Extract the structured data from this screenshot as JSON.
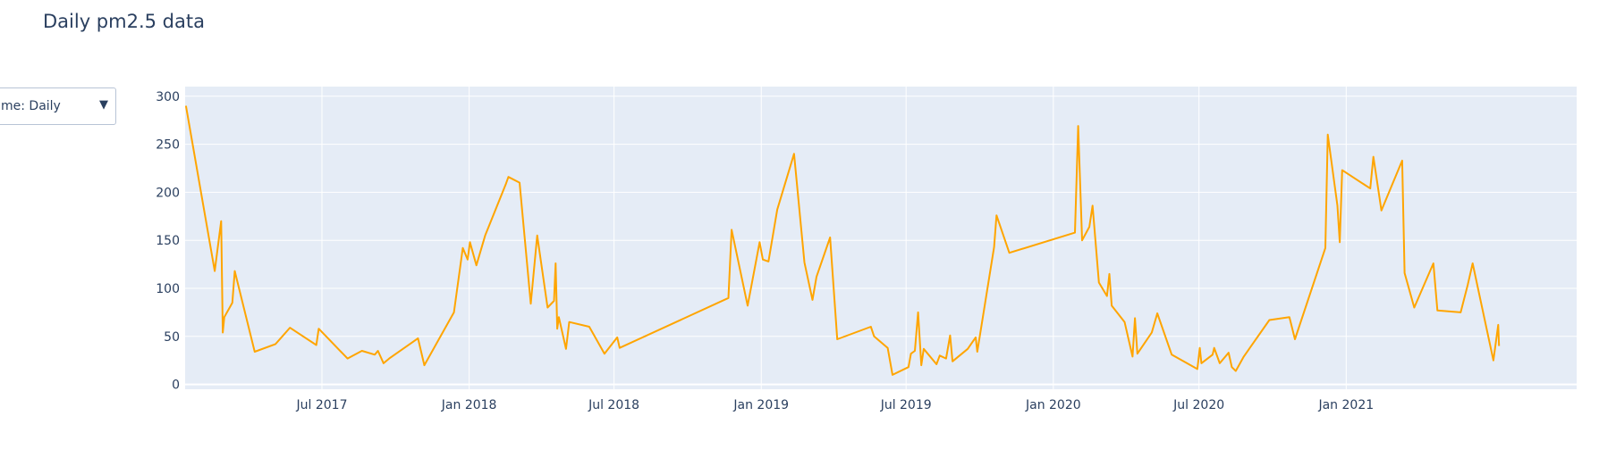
{
  "title": "Daily pm2.5 data",
  "dropdown": {
    "label": "Time: Daily",
    "visible_label": "me: Daily",
    "caret": "▼"
  },
  "colors": {
    "line": "#FFA500",
    "plot_bg": "#E5ECF6",
    "grid": "#ffffff",
    "text": "#2a3f5f"
  },
  "chart_data": {
    "type": "line",
    "title": "Daily pm2.5 data",
    "xlabel": "",
    "ylabel": "",
    "xlim": [
      "2017-01-11",
      "2021-10-16"
    ],
    "ylim": [
      -5,
      310
    ],
    "grid": true,
    "y_ticks": [
      0,
      50,
      100,
      150,
      200,
      250,
      300
    ],
    "x_ticks": [
      {
        "date": "2017-07-01",
        "label": "Jul 2017"
      },
      {
        "date": "2018-01-01",
        "label": "Jan 2018"
      },
      {
        "date": "2018-07-01",
        "label": "Jul 2018"
      },
      {
        "date": "2019-01-01",
        "label": "Jan 2019"
      },
      {
        "date": "2019-07-01",
        "label": "Jul 2019"
      },
      {
        "date": "2020-01-01",
        "label": "Jan 2020"
      },
      {
        "date": "2020-07-01",
        "label": "Jul 2020"
      },
      {
        "date": "2021-01-01",
        "label": "Jan 2021"
      }
    ],
    "series": [
      {
        "values": [
          [
            "2017-01-12",
            290
          ],
          [
            "2017-02-17",
            118
          ],
          [
            "2017-02-25",
            170
          ],
          [
            "2017-02-27",
            54
          ],
          [
            "2017-03-01",
            70
          ],
          [
            "2017-03-11",
            85
          ],
          [
            "2017-03-14",
            118
          ],
          [
            "2017-04-08",
            34
          ],
          [
            "2017-05-04",
            42
          ],
          [
            "2017-05-22",
            59
          ],
          [
            "2017-06-24",
            41
          ],
          [
            "2017-06-27",
            58
          ],
          [
            "2017-08-02",
            27
          ],
          [
            "2017-08-20",
            35
          ],
          [
            "2017-09-05",
            31
          ],
          [
            "2017-09-09",
            35
          ],
          [
            "2017-09-16",
            22
          ],
          [
            "2017-09-23",
            27
          ],
          [
            "2017-10-29",
            48
          ],
          [
            "2017-11-06",
            20
          ],
          [
            "2017-12-13",
            75
          ],
          [
            "2017-12-24",
            142
          ],
          [
            "2017-12-30",
            130
          ],
          [
            "2018-01-02",
            148
          ],
          [
            "2018-01-10",
            124
          ],
          [
            "2018-01-21",
            155
          ],
          [
            "2018-02-16",
            209
          ],
          [
            "2018-02-19",
            216
          ],
          [
            "2018-03-05",
            210
          ],
          [
            "2018-03-19",
            84
          ],
          [
            "2018-03-27",
            155
          ],
          [
            "2018-04-09",
            80
          ],
          [
            "2018-04-17",
            87
          ],
          [
            "2018-04-19",
            126
          ],
          [
            "2018-04-21",
            58
          ],
          [
            "2018-04-23",
            70
          ],
          [
            "2018-05-02",
            37
          ],
          [
            "2018-05-06",
            65
          ],
          [
            "2018-05-31",
            60
          ],
          [
            "2018-06-19",
            32
          ],
          [
            "2018-07-05",
            49
          ],
          [
            "2018-07-08",
            38
          ],
          [
            "2018-11-21",
            90
          ],
          [
            "2018-11-25",
            161
          ],
          [
            "2018-12-15",
            82
          ],
          [
            "2018-12-30",
            148
          ],
          [
            "2019-01-03",
            130
          ],
          [
            "2019-01-10",
            128
          ],
          [
            "2019-01-21",
            182
          ],
          [
            "2019-02-11",
            240
          ],
          [
            "2019-02-24",
            127
          ],
          [
            "2019-03-06",
            88
          ],
          [
            "2019-03-11",
            112
          ],
          [
            "2019-03-28",
            153
          ],
          [
            "2019-04-06",
            47
          ],
          [
            "2019-05-18",
            60
          ],
          [
            "2019-05-22",
            50
          ],
          [
            "2019-06-08",
            38
          ],
          [
            "2019-06-14",
            10
          ],
          [
            "2019-07-04",
            18
          ],
          [
            "2019-07-07",
            32
          ],
          [
            "2019-07-12",
            35
          ],
          [
            "2019-07-16",
            75
          ],
          [
            "2019-07-20",
            20
          ],
          [
            "2019-07-23",
            37
          ],
          [
            "2019-08-08",
            21
          ],
          [
            "2019-08-12",
            30
          ],
          [
            "2019-08-20",
            27
          ],
          [
            "2019-08-25",
            51
          ],
          [
            "2019-08-28",
            24
          ],
          [
            "2019-09-16",
            37
          ],
          [
            "2019-09-26",
            49
          ],
          [
            "2019-09-28",
            34
          ],
          [
            "2019-10-19",
            143
          ],
          [
            "2019-10-22",
            176
          ],
          [
            "2019-11-07",
            137
          ],
          [
            "2020-01-28",
            158
          ],
          [
            "2020-02-01",
            269
          ],
          [
            "2020-02-06",
            150
          ],
          [
            "2020-02-15",
            164
          ],
          [
            "2020-02-19",
            186
          ],
          [
            "2020-02-27",
            106
          ],
          [
            "2020-03-08",
            92
          ],
          [
            "2020-03-11",
            115
          ],
          [
            "2020-03-14",
            82
          ],
          [
            "2020-03-30",
            65
          ],
          [
            "2020-04-09",
            29
          ],
          [
            "2020-04-12",
            69
          ],
          [
            "2020-04-15",
            32
          ],
          [
            "2020-05-03",
            54
          ],
          [
            "2020-05-10",
            74
          ],
          [
            "2020-05-28",
            31
          ],
          [
            "2020-06-29",
            16
          ],
          [
            "2020-07-02",
            38
          ],
          [
            "2020-07-04",
            22
          ],
          [
            "2020-07-18",
            31
          ],
          [
            "2020-07-20",
            38
          ],
          [
            "2020-07-27",
            22
          ],
          [
            "2020-08-07",
            33
          ],
          [
            "2020-08-11",
            18
          ],
          [
            "2020-08-16",
            14
          ],
          [
            "2020-08-26",
            29
          ],
          [
            "2020-09-27",
            67
          ],
          [
            "2020-10-22",
            70
          ],
          [
            "2020-10-29",
            47
          ],
          [
            "2020-12-06",
            142
          ],
          [
            "2020-12-09",
            260
          ],
          [
            "2020-12-21",
            186
          ],
          [
            "2020-12-24",
            148
          ],
          [
            "2020-12-27",
            223
          ],
          [
            "2021-01-31",
            204
          ],
          [
            "2021-02-04",
            237
          ],
          [
            "2021-02-14",
            181
          ],
          [
            "2021-03-12",
            233
          ],
          [
            "2021-03-15",
            116
          ],
          [
            "2021-03-27",
            80
          ],
          [
            "2021-04-20",
            126
          ],
          [
            "2021-04-25",
            77
          ],
          [
            "2021-05-24",
            75
          ],
          [
            "2021-06-02",
            104
          ],
          [
            "2021-06-08",
            126
          ],
          [
            "2021-07-04",
            25
          ],
          [
            "2021-07-10",
            62
          ],
          [
            "2021-07-11",
            40
          ]
        ]
      }
    ]
  }
}
